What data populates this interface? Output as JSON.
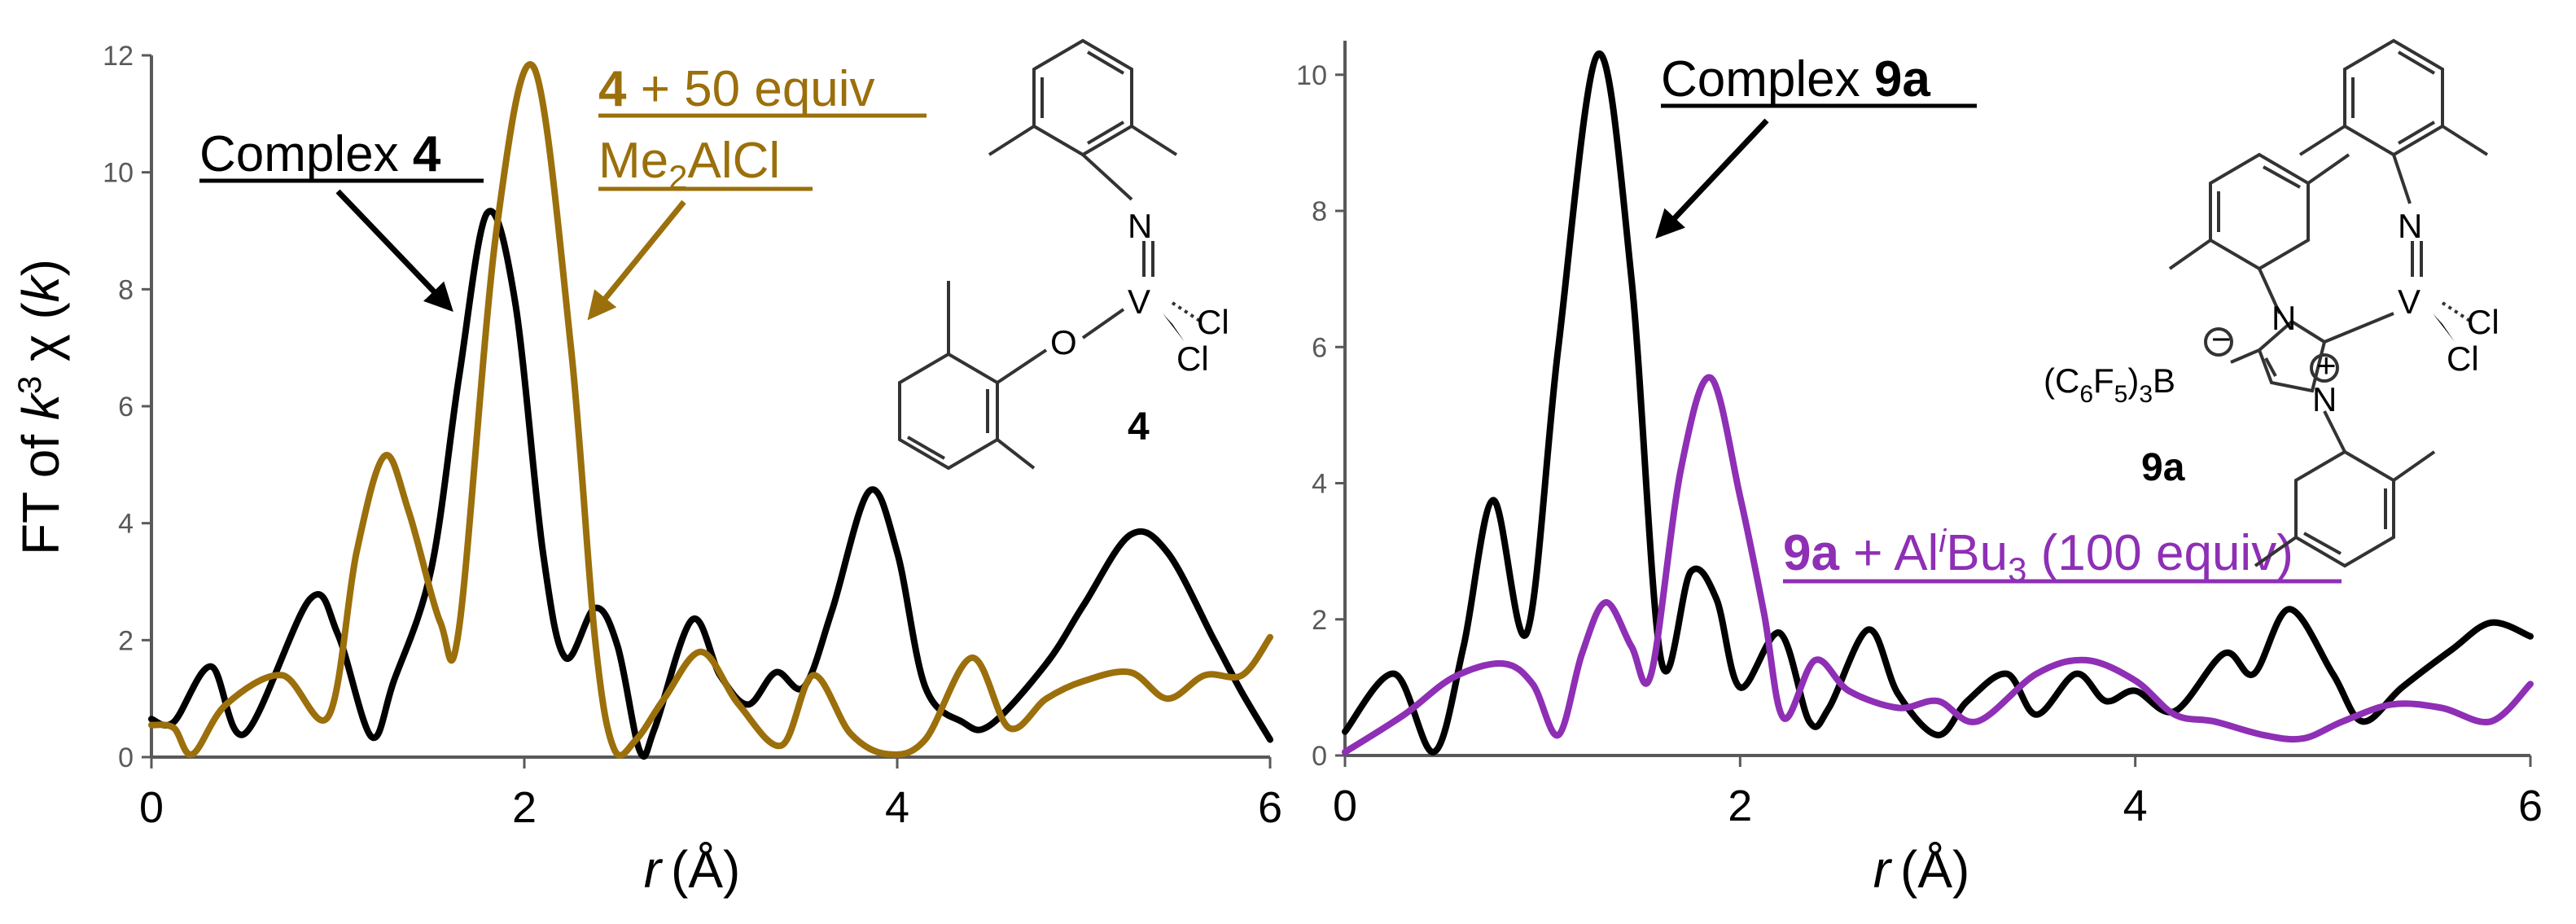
{
  "colors": {
    "complex_4": "#000000",
    "complex_4_me2alcl": "#9B6F0B",
    "complex_9a": "#000000",
    "complex_9a_alibu3": "#8E2FB5",
    "axis": "#595959"
  },
  "chart_data": [
    {
      "type": "line",
      "xlabel_var": "r",
      "xlabel_unit": "(Å)",
      "ylabel_parts": [
        "FT of ",
        "k",
        "3",
        " χ (",
        "k",
        ")"
      ],
      "xlim": [
        0,
        6
      ],
      "ylim": [
        0,
        12
      ],
      "xticks": [
        "0",
        "2",
        "4",
        "6"
      ],
      "yticks": [
        "0",
        "2",
        "4",
        "6",
        "8",
        "10",
        "12"
      ],
      "grid": false,
      "legend": "none",
      "series": [
        {
          "name": "Complex 4",
          "x": [
            0,
            0.12,
            0.32,
            0.5,
            0.85,
            1.0,
            1.18,
            1.3,
            1.5,
            1.65,
            1.8,
            1.95,
            2.1,
            2.22,
            2.38,
            2.5,
            2.62,
            2.7,
            2.9,
            3.05,
            3.2,
            3.35,
            3.5,
            3.65,
            3.85,
            4.0,
            4.15,
            4.35,
            4.5,
            4.8,
            5.0,
            5.25,
            5.45,
            5.7,
            5.85,
            6.0
          ],
          "values": [
            0.65,
            0.6,
            1.55,
            0.4,
            2.7,
            2.1,
            0.35,
            1.3,
            3.2,
            6.5,
            9.3,
            7.8,
            3.5,
            1.7,
            2.55,
            1.9,
            0.1,
            0.5,
            2.35,
            1.4,
            0.9,
            1.45,
            1.2,
            2.5,
            4.55,
            3.5,
            1.2,
            0.6,
            0.55,
            1.6,
            2.6,
            3.8,
            3.5,
            2.0,
            1.1,
            0.3
          ]
        },
        {
          "name": "4 + 50 equiv Me2AlCl",
          "x": [
            0,
            0.12,
            0.22,
            0.4,
            0.7,
            0.95,
            1.1,
            1.25,
            1.38,
            1.55,
            1.65,
            1.85,
            2.05,
            2.25,
            2.38,
            2.48,
            2.6,
            2.75,
            2.95,
            3.15,
            3.38,
            3.55,
            3.75,
            3.95,
            4.15,
            4.4,
            4.6,
            4.8,
            5.0,
            5.25,
            5.45,
            5.65,
            5.85,
            6.0
          ],
          "values": [
            0.55,
            0.5,
            0.05,
            0.9,
            1.4,
            0.7,
            3.5,
            5.15,
            4.2,
            2.3,
            2.2,
            9.0,
            11.8,
            7.0,
            2.0,
            0.15,
            0.3,
            1.0,
            1.8,
            0.9,
            0.2,
            1.4,
            0.4,
            0.05,
            0.3,
            1.7,
            0.5,
            1.0,
            1.3,
            1.45,
            1.0,
            1.4,
            1.4,
            2.05
          ]
        }
      ]
    },
    {
      "type": "line",
      "xlabel_var": "r",
      "xlabel_unit": "(Å)",
      "xlim": [
        0,
        6
      ],
      "ylim": [
        0,
        10.5
      ],
      "xticks": [
        "0",
        "2",
        "4",
        "6"
      ],
      "yticks": [
        "0",
        "2",
        "4",
        "6",
        "8",
        "10"
      ],
      "grid": false,
      "legend": "none",
      "series": [
        {
          "name": "Complex 9a",
          "x": [
            0,
            0.25,
            0.45,
            0.6,
            0.75,
            0.92,
            1.08,
            1.28,
            1.45,
            1.6,
            1.75,
            1.88,
            2.0,
            2.2,
            2.35,
            2.45,
            2.65,
            2.8,
            3.0,
            3.15,
            3.35,
            3.5,
            3.7,
            3.85,
            4.0,
            4.2,
            4.45,
            4.6,
            4.78,
            5.0,
            5.15,
            5.35,
            5.6,
            5.8,
            6.0
          ],
          "values": [
            0.35,
            1.2,
            0.05,
            1.6,
            3.75,
            1.8,
            6.0,
            10.3,
            7.0,
            1.4,
            2.7,
            2.3,
            1.0,
            1.8,
            0.5,
            0.7,
            1.85,
            0.9,
            0.3,
            0.8,
            1.2,
            0.6,
            1.2,
            0.8,
            0.95,
            0.65,
            1.5,
            1.2,
            2.15,
            1.2,
            0.5,
            1.0,
            1.55,
            1.95,
            1.75
          ]
        },
        {
          "name": "9a + AliBu3 (100 equiv)",
          "x": [
            0,
            0.3,
            0.55,
            0.8,
            0.95,
            1.08,
            1.2,
            1.32,
            1.45,
            1.55,
            1.7,
            1.85,
            2.0,
            2.12,
            2.22,
            2.38,
            2.55,
            2.8,
            3.0,
            3.2,
            3.5,
            3.75,
            4.0,
            4.2,
            4.4,
            4.65,
            4.85,
            5.05,
            5.3,
            5.55,
            5.8,
            6.0
          ],
          "values": [
            0.05,
            0.6,
            1.15,
            1.35,
            1.05,
            0.3,
            1.5,
            2.25,
            1.6,
            1.2,
            4.2,
            5.55,
            3.8,
            2.1,
            0.55,
            1.4,
            0.95,
            0.7,
            0.8,
            0.5,
            1.2,
            1.4,
            1.1,
            0.6,
            0.5,
            0.3,
            0.25,
            0.5,
            0.75,
            0.7,
            0.5,
            1.05
          ]
        }
      ]
    }
  ],
  "annotations": {
    "left_black_label": {
      "text": "Complex ",
      "bold": "4"
    },
    "left_gold_label_line1": {
      "bold": "4",
      "text": " + 50 equiv"
    },
    "left_gold_label_line2": {
      "text_a": "Me",
      "sub": "2",
      "text_b": "AlCl"
    },
    "right_black_label": {
      "text": "Complex ",
      "bold": "9a"
    },
    "right_purple_label": {
      "bold": "9a",
      "text_a": " + Al",
      "sup": "i",
      "text_b": "Bu",
      "sub": "3",
      "text_c": " (100 equiv)"
    }
  },
  "structures": {
    "struct_4": {
      "atoms": [
        "N",
        "V",
        "Cl",
        "Cl",
        "O"
      ],
      "label": "4"
    },
    "struct_9a": {
      "atoms": [
        "N",
        "V",
        "Cl",
        "Cl",
        "N",
        "N"
      ],
      "borate_label": {
        "a": "(C",
        "s1": "6",
        "b": "F",
        "s2": "5",
        "c": ")",
        "s3": "3",
        "d": "B"
      },
      "charges": [
        "−",
        "+"
      ],
      "label": "9a"
    }
  }
}
